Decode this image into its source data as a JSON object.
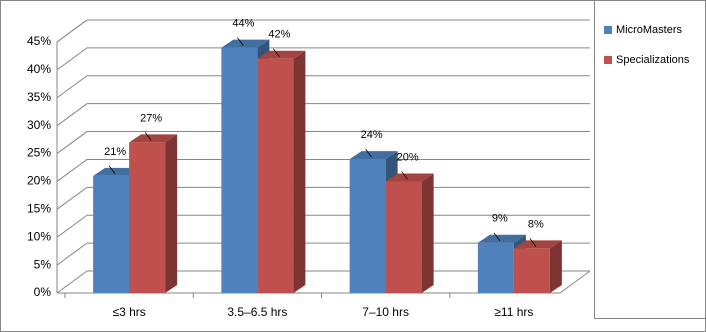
{
  "chart_data": {
    "type": "bar3d",
    "categories": [
      "≤3 hrs",
      "3.5–6.5 hrs",
      "7–10 hrs",
      "≥11 hrs"
    ],
    "series": [
      {
        "name": "MicroMasters",
        "color": "#4f81bd",
        "values": [
          21,
          44,
          24,
          9
        ],
        "value_labels": [
          "21%",
          "44%",
          "24%",
          "9%"
        ]
      },
      {
        "name": "Specializations",
        "color": "#c0504d",
        "values": [
          27,
          42,
          20,
          8
        ],
        "value_labels": [
          "27%",
          "42%",
          "20%",
          "8%"
        ]
      }
    ],
    "ylim": [
      0,
      45
    ],
    "yticks": [
      {
        "value": 0,
        "label": "0%"
      },
      {
        "value": 5,
        "label": "5%"
      },
      {
        "value": 10,
        "label": "10%"
      },
      {
        "value": 15,
        "label": "15%"
      },
      {
        "value": 20,
        "label": "20%"
      },
      {
        "value": 25,
        "label": "25%"
      },
      {
        "value": 30,
        "label": "30%"
      },
      {
        "value": 35,
        "label": "35%"
      },
      {
        "value": 40,
        "label": "40%"
      },
      {
        "value": 45,
        "label": "45%"
      }
    ],
    "grid": true,
    "legend": "right"
  }
}
